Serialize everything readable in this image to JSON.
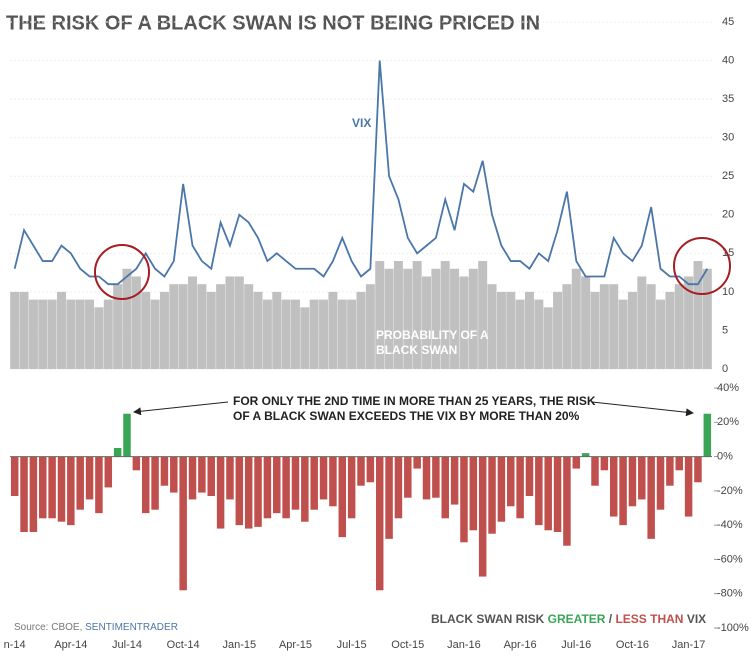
{
  "chart_data": {
    "type": "combo",
    "title": "THE RISK OF A BLACK SWAN IS NOT BEING PRICED IN",
    "categories": [
      "n-14",
      null,
      null,
      null,
      null,
      null,
      "Apr-14",
      null,
      null,
      null,
      null,
      null,
      "Jul-14",
      null,
      null,
      null,
      null,
      null,
      "Oct-14",
      null,
      null,
      null,
      null,
      null,
      "Jan-15",
      null,
      null,
      null,
      null,
      null,
      "Apr-15",
      null,
      null,
      null,
      null,
      null,
      "Jul-15",
      null,
      null,
      null,
      null,
      null,
      "Oct-15",
      null,
      null,
      null,
      null,
      null,
      "Jan-16",
      null,
      null,
      null,
      null,
      null,
      "Apr-16",
      null,
      null,
      null,
      null,
      null,
      "Jul-16",
      null,
      null,
      null,
      null,
      null,
      "Oct-16",
      null,
      null,
      null,
      null,
      null,
      "Jan-17",
      null,
      null
    ],
    "series": [
      {
        "name": "VIX",
        "type": "line",
        "color": "#4a76aa",
        "values": [
          13,
          18,
          16,
          14,
          14,
          16,
          15,
          13,
          12,
          12,
          11,
          11,
          12,
          13,
          15,
          13,
          12,
          14,
          24,
          16,
          14,
          13,
          19,
          16,
          20,
          19,
          17,
          14,
          15,
          14,
          13,
          13,
          13,
          12,
          14,
          17,
          14,
          12,
          13,
          40,
          25,
          22,
          17,
          15,
          16,
          17,
          22,
          18,
          24,
          23,
          27,
          20,
          16,
          14,
          14,
          13,
          15,
          14,
          18,
          23,
          14,
          12,
          12,
          12,
          17,
          15,
          14,
          16,
          21,
          13,
          12,
          12,
          11,
          11,
          13
        ]
      },
      {
        "name": "PROBABILITY OF A BLACK SWAN",
        "type": "bar",
        "color": "#c0c0c0",
        "values": [
          10,
          10,
          9,
          9,
          9,
          10,
          9,
          9,
          9,
          8,
          9,
          11,
          13,
          12,
          10,
          9,
          10,
          11,
          11,
          12,
          11,
          10,
          11,
          12,
          12,
          11,
          10,
          9,
          10,
          9,
          9,
          8,
          9,
          9,
          10,
          9,
          9,
          10,
          11,
          14,
          13,
          14,
          13,
          14,
          12,
          13,
          14,
          13,
          12,
          13,
          14,
          11,
          10,
          10,
          9,
          10,
          9,
          8,
          10,
          11,
          13,
          12,
          10,
          11,
          11,
          9,
          10,
          12,
          11,
          9,
          10,
          11,
          12,
          14,
          13
        ]
      },
      {
        "type": "bar",
        "axis": "y2",
        "positive_color": "#3aa655",
        "negative_color": "#c0504d",
        "values": [
          -23,
          -44,
          -44,
          -36,
          -36,
          -38,
          -40,
          -31,
          -25,
          -33,
          -18,
          5,
          25,
          -8,
          -33,
          -31,
          -17,
          -21,
          -78,
          -25,
          -21,
          -23,
          -42,
          -25,
          -40,
          -42,
          -41,
          -36,
          -33,
          -36,
          -31,
          -38,
          -31,
          -25,
          -29,
          -47,
          -36,
          -17,
          -15,
          -78,
          -48,
          -36,
          -24,
          -7,
          -25,
          -24,
          -36,
          -28,
          -50,
          -43,
          -70,
          -45,
          -38,
          -29,
          -36,
          -23,
          -40,
          -43,
          -44,
          -52,
          -7,
          2,
          -17,
          -8,
          -35,
          -40,
          -29,
          -25,
          -48,
          -31,
          -17,
          -8,
          -35,
          -15,
          25
        ]
      }
    ],
    "ylim": [
      0,
      45
    ],
    "yticks": [
      0,
      5,
      10,
      15,
      20,
      25,
      30,
      35,
      40,
      45
    ],
    "y2lim": [
      -100,
      40
    ],
    "y2ticks": [
      {
        "value": 40,
        "label": "40%"
      },
      {
        "value": 20,
        "label": "20%"
      },
      {
        "value": 0,
        "label": "0%"
      },
      {
        "value": -20,
        "label": "-20%"
      },
      {
        "value": -40,
        "label": "-40%"
      },
      {
        "value": -60,
        "label": "-60%"
      },
      {
        "value": -80,
        "label": "-80%"
      },
      {
        "value": -100,
        "label": "-100%"
      }
    ],
    "grid": true,
    "annotation": "FOR ONLY THE 2ND TIME IN MORE THAN 25 YEARS, THE RISK OF A BLACK SWAN EXCEEDS THE VIX BY MORE THAN 20%",
    "source": {
      "prefix": "Source: CBOE, ",
      "name": "SENTIMENTRADER"
    },
    "legend": {
      "prefix": "BLACK SWAN RISK ",
      "greater": "GREATER",
      "sep": " / ",
      "less": "LESS THAN",
      "suffix": " VIX"
    }
  }
}
